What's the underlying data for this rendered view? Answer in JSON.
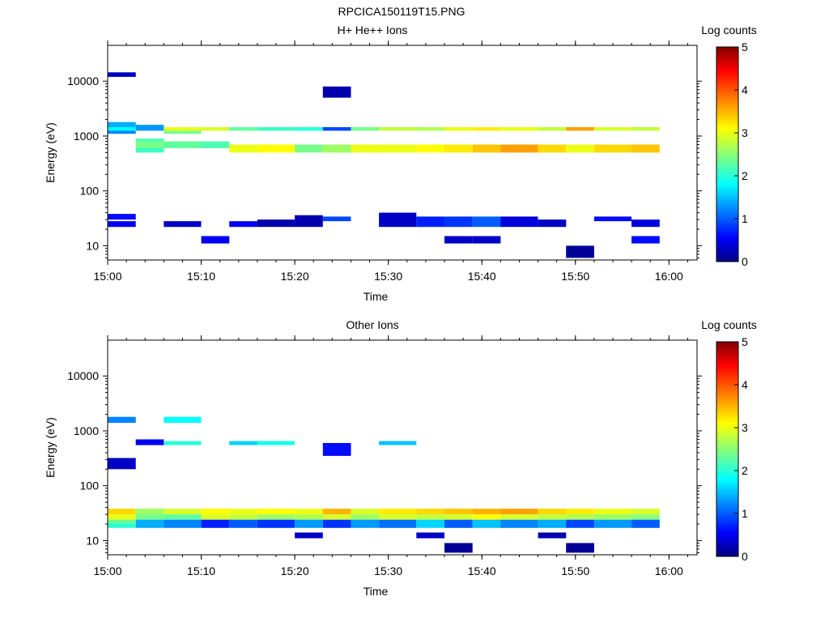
{
  "figure_title": "RPCICA150119T15.PNG",
  "chart_data": [
    {
      "type": "heatmap",
      "title": "H+ He++ Ions",
      "xlabel": "Time",
      "ylabel": "Energy (eV)",
      "x_range": [
        "15:00",
        "16:03"
      ],
      "x_ticks": [
        "15:00",
        "15:10",
        "15:20",
        "15:30",
        "15:40",
        "15:50",
        "16:00"
      ],
      "y_scale": "log",
      "y_range": [
        5.5,
        45000
      ],
      "y_ticks": [
        "10",
        "100",
        "1000",
        "10000"
      ],
      "colorbar": {
        "label": "Log counts",
        "range": [
          0,
          5
        ],
        "ticks": [
          "0",
          "1",
          "2",
          "3",
          "4",
          "5"
        ]
      },
      "time_bins": [
        "15:00",
        "15:03",
        "15:06",
        "15:10",
        "15:13",
        "15:16",
        "15:20",
        "15:23",
        "15:26",
        "15:29",
        "15:33",
        "15:36",
        "15:39",
        "15:42",
        "15:46",
        "15:49",
        "15:52",
        "15:56",
        "15:59"
      ],
      "cells": [
        {
          "t": 0,
          "e_lo": 1450,
          "e_hi": 1800,
          "v": 1.4
        },
        {
          "t": 0,
          "e_lo": 1250,
          "e_hi": 1450,
          "v": 1.8
        },
        {
          "t": 0,
          "e_lo": 1100,
          "e_hi": 1250,
          "v": 1.2
        },
        {
          "t": 0,
          "e_lo": 30,
          "e_hi": 38,
          "v": 0.6
        },
        {
          "t": 0,
          "e_lo": 22,
          "e_hi": 28,
          "v": 0.5
        },
        {
          "t": 0,
          "e_lo": 12000,
          "e_hi": 14500,
          "v": 0.3
        },
        {
          "t": 1,
          "e_lo": 800,
          "e_hi": 900,
          "v": 2.2
        },
        {
          "t": 1,
          "e_lo": 600,
          "e_hi": 800,
          "v": 2.4
        },
        {
          "t": 1,
          "e_lo": 500,
          "e_hi": 600,
          "v": 2.1
        },
        {
          "t": 1,
          "e_lo": 1250,
          "e_hi": 1600,
          "v": 1.3
        },
        {
          "t": 2,
          "e_lo": 1250,
          "e_hi": 1450,
          "v": 3.0
        },
        {
          "t": 2,
          "e_lo": 1100,
          "e_hi": 1250,
          "v": 2.4
        },
        {
          "t": 2,
          "e_lo": 600,
          "e_hi": 800,
          "v": 2.3
        },
        {
          "t": 2,
          "e_lo": 22,
          "e_hi": 28,
          "v": 0.3
        },
        {
          "t": 3,
          "e_lo": 1250,
          "e_hi": 1450,
          "v": 2.9
        },
        {
          "t": 3,
          "e_lo": 600,
          "e_hi": 800,
          "v": 2.2
        },
        {
          "t": 3,
          "e_lo": 11,
          "e_hi": 15,
          "v": 0.5
        },
        {
          "t": 4,
          "e_lo": 1250,
          "e_hi": 1450,
          "v": 2.3
        },
        {
          "t": 4,
          "e_lo": 500,
          "e_hi": 700,
          "v": 3.0
        },
        {
          "t": 4,
          "e_lo": 22,
          "e_hi": 28,
          "v": 0.5
        },
        {
          "t": 5,
          "e_lo": 1250,
          "e_hi": 1450,
          "v": 2.1
        },
        {
          "t": 5,
          "e_lo": 500,
          "e_hi": 700,
          "v": 3.1
        },
        {
          "t": 5,
          "e_lo": 22,
          "e_hi": 30,
          "v": 0.2
        },
        {
          "t": 6,
          "e_lo": 1250,
          "e_hi": 1450,
          "v": 2.0
        },
        {
          "t": 6,
          "e_lo": 500,
          "e_hi": 700,
          "v": 2.4
        },
        {
          "t": 6,
          "e_lo": 22,
          "e_hi": 36,
          "v": 0.2
        },
        {
          "t": 7,
          "e_lo": 1250,
          "e_hi": 1450,
          "v": 0.9
        },
        {
          "t": 7,
          "e_lo": 500,
          "e_hi": 700,
          "v": 2.6
        },
        {
          "t": 7,
          "e_lo": 28,
          "e_hi": 34,
          "v": 0.9
        },
        {
          "t": 7,
          "e_lo": 5000,
          "e_hi": 8000,
          "v": 0.2
        },
        {
          "t": 8,
          "e_lo": 1250,
          "e_hi": 1450,
          "v": 2.4
        },
        {
          "t": 8,
          "e_lo": 500,
          "e_hi": 700,
          "v": 3.0
        },
        {
          "t": 9,
          "e_lo": 1250,
          "e_hi": 1450,
          "v": 2.8
        },
        {
          "t": 9,
          "e_lo": 500,
          "e_hi": 700,
          "v": 3.0
        },
        {
          "t": 9,
          "e_lo": 22,
          "e_hi": 40,
          "v": 0.3
        },
        {
          "t": 10,
          "e_lo": 1250,
          "e_hi": 1450,
          "v": 2.7
        },
        {
          "t": 10,
          "e_lo": 500,
          "e_hi": 700,
          "v": 3.1
        },
        {
          "t": 10,
          "e_lo": 22,
          "e_hi": 34,
          "v": 0.7
        },
        {
          "t": 11,
          "e_lo": 1250,
          "e_hi": 1450,
          "v": 3.0
        },
        {
          "t": 11,
          "e_lo": 500,
          "e_hi": 700,
          "v": 3.2
        },
        {
          "t": 11,
          "e_lo": 22,
          "e_hi": 34,
          "v": 0.8
        },
        {
          "t": 11,
          "e_lo": 11,
          "e_hi": 15,
          "v": 0.3
        },
        {
          "t": 12,
          "e_lo": 1250,
          "e_hi": 1450,
          "v": 3.2
        },
        {
          "t": 12,
          "e_lo": 500,
          "e_hi": 700,
          "v": 3.4
        },
        {
          "t": 12,
          "e_lo": 22,
          "e_hi": 34,
          "v": 1.0
        },
        {
          "t": 12,
          "e_lo": 11,
          "e_hi": 15,
          "v": 0.3
        },
        {
          "t": 13,
          "e_lo": 1250,
          "e_hi": 1450,
          "v": 3.0
        },
        {
          "t": 13,
          "e_lo": 500,
          "e_hi": 700,
          "v": 3.6
        },
        {
          "t": 13,
          "e_lo": 22,
          "e_hi": 34,
          "v": 0.4
        },
        {
          "t": 14,
          "e_lo": 1250,
          "e_hi": 1450,
          "v": 2.8
        },
        {
          "t": 14,
          "e_lo": 500,
          "e_hi": 700,
          "v": 3.3
        },
        {
          "t": 14,
          "e_lo": 22,
          "e_hi": 30,
          "v": 0.3
        },
        {
          "t": 15,
          "e_lo": 1250,
          "e_hi": 1450,
          "v": 3.6
        },
        {
          "t": 15,
          "e_lo": 500,
          "e_hi": 700,
          "v": 3.0
        },
        {
          "t": 15,
          "e_lo": 6,
          "e_hi": 10,
          "v": 0.1
        },
        {
          "t": 16,
          "e_lo": 1250,
          "e_hi": 1450,
          "v": 2.9
        },
        {
          "t": 16,
          "e_lo": 500,
          "e_hi": 700,
          "v": 3.3
        },
        {
          "t": 16,
          "e_lo": 28,
          "e_hi": 34,
          "v": 0.6
        },
        {
          "t": 17,
          "e_lo": 1250,
          "e_hi": 1450,
          "v": 2.8
        },
        {
          "t": 17,
          "e_lo": 500,
          "e_hi": 700,
          "v": 3.4
        },
        {
          "t": 17,
          "e_lo": 22,
          "e_hi": 30,
          "v": 0.4
        },
        {
          "t": 17,
          "e_lo": 11,
          "e_hi": 15,
          "v": 0.6
        }
      ]
    },
    {
      "type": "heatmap",
      "title": "Other Ions",
      "xlabel": "Time",
      "ylabel": "Energy (eV)",
      "x_range": [
        "15:00",
        "16:03"
      ],
      "x_ticks": [
        "15:00",
        "15:10",
        "15:20",
        "15:30",
        "15:40",
        "15:50",
        "16:00"
      ],
      "y_scale": "log",
      "y_range": [
        5.5,
        45000
      ],
      "y_ticks": [
        "10",
        "100",
        "1000",
        "10000"
      ],
      "colorbar": {
        "label": "Log counts",
        "range": [
          0,
          5
        ],
        "ticks": [
          "0",
          "1",
          "2",
          "3",
          "4",
          "5"
        ]
      },
      "time_bins": [
        "15:00",
        "15:03",
        "15:06",
        "15:10",
        "15:13",
        "15:16",
        "15:20",
        "15:23",
        "15:26",
        "15:29",
        "15:33",
        "15:36",
        "15:39",
        "15:42",
        "15:46",
        "15:49",
        "15:52",
        "15:56",
        "15:59"
      ],
      "cells": [
        {
          "t": 0,
          "e_lo": 30,
          "e_hi": 38,
          "v": 3.3
        },
        {
          "t": 0,
          "e_lo": 24,
          "e_hi": 30,
          "v": 3.0
        },
        {
          "t": 0,
          "e_lo": 20,
          "e_hi": 24,
          "v": 2.3
        },
        {
          "t": 0,
          "e_lo": 17,
          "e_hi": 20,
          "v": 2.0
        },
        {
          "t": 0,
          "e_lo": 1400,
          "e_hi": 1800,
          "v": 1.2
        },
        {
          "t": 0,
          "e_lo": 200,
          "e_hi": 320,
          "v": 0.3
        },
        {
          "t": 1,
          "e_lo": 30,
          "e_hi": 38,
          "v": 2.6
        },
        {
          "t": 1,
          "e_lo": 24,
          "e_hi": 30,
          "v": 2.4
        },
        {
          "t": 1,
          "e_lo": 17,
          "e_hi": 24,
          "v": 1.4
        },
        {
          "t": 1,
          "e_lo": 550,
          "e_hi": 700,
          "v": 0.5
        },
        {
          "t": 2,
          "e_lo": 30,
          "e_hi": 38,
          "v": 2.9
        },
        {
          "t": 2,
          "e_lo": 24,
          "e_hi": 30,
          "v": 2.3
        },
        {
          "t": 2,
          "e_lo": 17,
          "e_hi": 24,
          "v": 1.2
        },
        {
          "t": 2,
          "e_lo": 1400,
          "e_hi": 1800,
          "v": 1.8
        },
        {
          "t": 2,
          "e_lo": 550,
          "e_hi": 650,
          "v": 2.0
        },
        {
          "t": 3,
          "e_lo": 30,
          "e_hi": 38,
          "v": 3.1
        },
        {
          "t": 3,
          "e_lo": 24,
          "e_hi": 30,
          "v": 2.9
        },
        {
          "t": 3,
          "e_lo": 17,
          "e_hi": 24,
          "v": 0.7
        },
        {
          "t": 4,
          "e_lo": 30,
          "e_hi": 38,
          "v": 3.0
        },
        {
          "t": 4,
          "e_lo": 24,
          "e_hi": 30,
          "v": 2.8
        },
        {
          "t": 4,
          "e_lo": 17,
          "e_hi": 24,
          "v": 1.0
        },
        {
          "t": 4,
          "e_lo": 550,
          "e_hi": 650,
          "v": 1.6
        },
        {
          "t": 5,
          "e_lo": 30,
          "e_hi": 38,
          "v": 3.1
        },
        {
          "t": 5,
          "e_lo": 24,
          "e_hi": 30,
          "v": 2.6
        },
        {
          "t": 5,
          "e_lo": 17,
          "e_hi": 24,
          "v": 0.8
        },
        {
          "t": 5,
          "e_lo": 550,
          "e_hi": 650,
          "v": 1.9
        },
        {
          "t": 6,
          "e_lo": 30,
          "e_hi": 38,
          "v": 3.0
        },
        {
          "t": 6,
          "e_lo": 24,
          "e_hi": 30,
          "v": 2.7
        },
        {
          "t": 6,
          "e_lo": 17,
          "e_hi": 24,
          "v": 1.3
        },
        {
          "t": 6,
          "e_lo": 11,
          "e_hi": 14,
          "v": 0.3
        },
        {
          "t": 7,
          "e_lo": 30,
          "e_hi": 38,
          "v": 3.5
        },
        {
          "t": 7,
          "e_lo": 24,
          "e_hi": 30,
          "v": 2.9
        },
        {
          "t": 7,
          "e_lo": 17,
          "e_hi": 24,
          "v": 0.8
        },
        {
          "t": 7,
          "e_lo": 350,
          "e_hi": 600,
          "v": 0.6
        },
        {
          "t": 8,
          "e_lo": 30,
          "e_hi": 38,
          "v": 2.9
        },
        {
          "t": 8,
          "e_lo": 24,
          "e_hi": 30,
          "v": 2.6
        },
        {
          "t": 8,
          "e_lo": 17,
          "e_hi": 24,
          "v": 1.3
        },
        {
          "t": 9,
          "e_lo": 30,
          "e_hi": 38,
          "v": 3.2
        },
        {
          "t": 9,
          "e_lo": 24,
          "e_hi": 30,
          "v": 2.9
        },
        {
          "t": 9,
          "e_lo": 17,
          "e_hi": 24,
          "v": 1.1
        },
        {
          "t": 9,
          "e_lo": 550,
          "e_hi": 650,
          "v": 1.5
        },
        {
          "t": 10,
          "e_lo": 30,
          "e_hi": 38,
          "v": 3.3
        },
        {
          "t": 10,
          "e_lo": 24,
          "e_hi": 30,
          "v": 2.8
        },
        {
          "t": 10,
          "e_lo": 17,
          "e_hi": 24,
          "v": 1.6
        },
        {
          "t": 10,
          "e_lo": 11,
          "e_hi": 14,
          "v": 0.3
        },
        {
          "t": 11,
          "e_lo": 30,
          "e_hi": 38,
          "v": 3.4
        },
        {
          "t": 11,
          "e_lo": 24,
          "e_hi": 30,
          "v": 2.9
        },
        {
          "t": 11,
          "e_lo": 17,
          "e_hi": 24,
          "v": 1.0
        },
        {
          "t": 11,
          "e_lo": 6,
          "e_hi": 9,
          "v": 0.1
        },
        {
          "t": 12,
          "e_lo": 30,
          "e_hi": 38,
          "v": 3.5
        },
        {
          "t": 12,
          "e_lo": 24,
          "e_hi": 30,
          "v": 3.1
        },
        {
          "t": 12,
          "e_lo": 17,
          "e_hi": 24,
          "v": 1.5
        },
        {
          "t": 13,
          "e_lo": 30,
          "e_hi": 38,
          "v": 3.6
        },
        {
          "t": 13,
          "e_lo": 24,
          "e_hi": 30,
          "v": 2.9
        },
        {
          "t": 13,
          "e_lo": 17,
          "e_hi": 24,
          "v": 1.2
        },
        {
          "t": 14,
          "e_lo": 30,
          "e_hi": 38,
          "v": 3.3
        },
        {
          "t": 14,
          "e_lo": 24,
          "e_hi": 30,
          "v": 2.8
        },
        {
          "t": 14,
          "e_lo": 17,
          "e_hi": 24,
          "v": 1.4
        },
        {
          "t": 14,
          "e_lo": 11,
          "e_hi": 14,
          "v": 0.2
        },
        {
          "t": 15,
          "e_lo": 30,
          "e_hi": 38,
          "v": 3.2
        },
        {
          "t": 15,
          "e_lo": 24,
          "e_hi": 30,
          "v": 2.7
        },
        {
          "t": 15,
          "e_lo": 17,
          "e_hi": 24,
          "v": 0.9
        },
        {
          "t": 15,
          "e_lo": 6,
          "e_hi": 9,
          "v": 0.1
        },
        {
          "t": 16,
          "e_lo": 30,
          "e_hi": 38,
          "v": 3.0
        },
        {
          "t": 16,
          "e_lo": 24,
          "e_hi": 30,
          "v": 2.6
        },
        {
          "t": 16,
          "e_lo": 17,
          "e_hi": 24,
          "v": 1.3
        },
        {
          "t": 17,
          "e_lo": 30,
          "e_hi": 38,
          "v": 2.9
        },
        {
          "t": 17,
          "e_lo": 24,
          "e_hi": 30,
          "v": 2.5
        },
        {
          "t": 17,
          "e_lo": 17,
          "e_hi": 24,
          "v": 1.0
        }
      ]
    }
  ]
}
